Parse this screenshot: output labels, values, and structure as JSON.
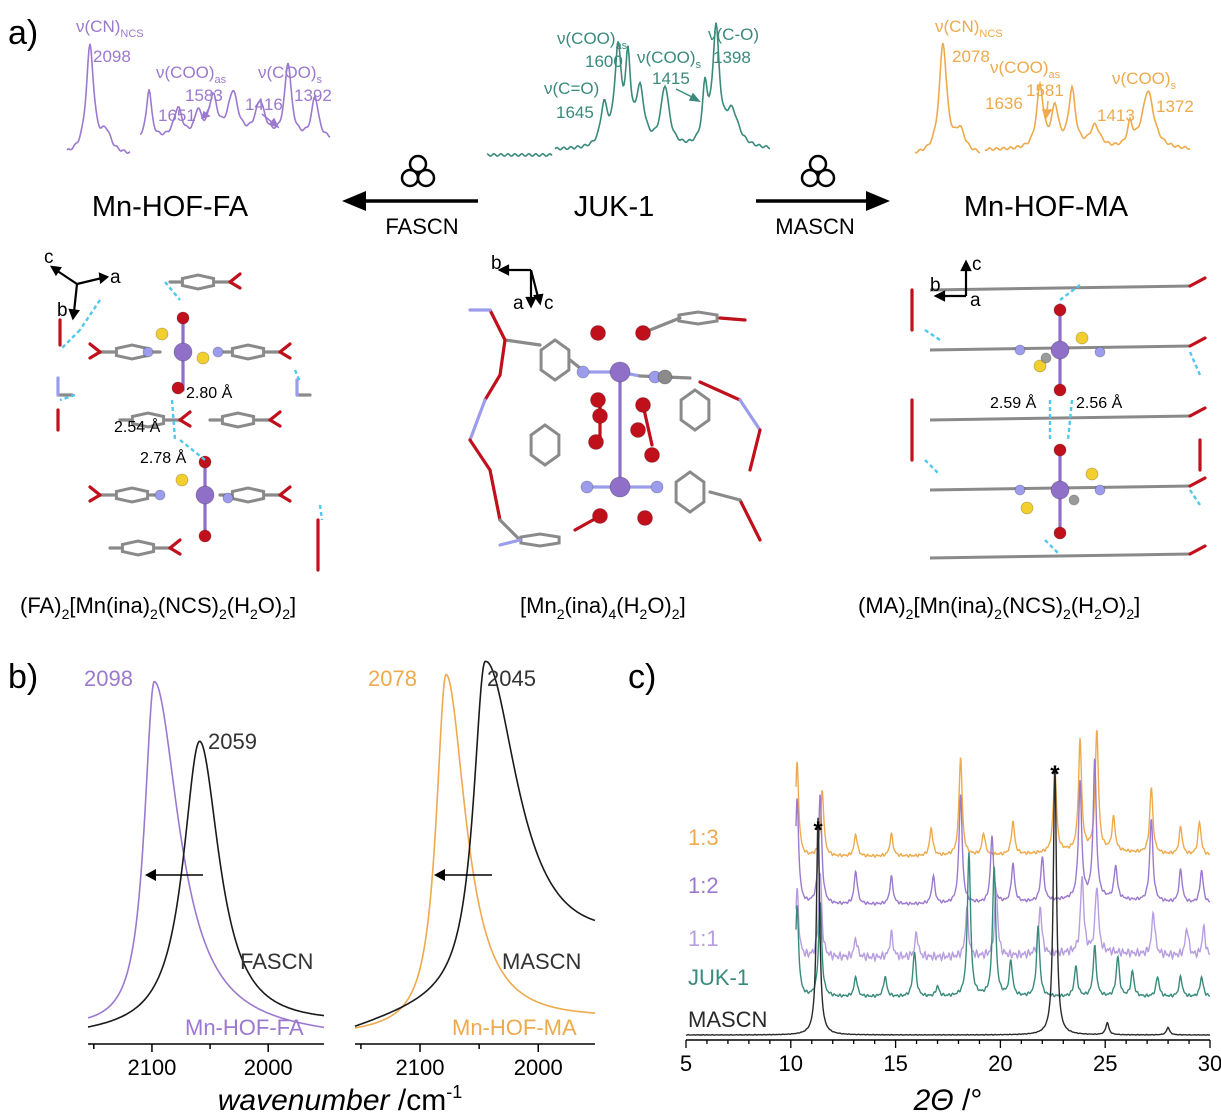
{
  "panel_labels": {
    "a": "a)",
    "b": "b)",
    "c": "c)"
  },
  "colors": {
    "fa": "#9b79cf",
    "juk": "#3a8a7c",
    "ma": "#eeaa4c",
    "black": "#1a1a1a",
    "mn": "#8f6fc8",
    "o": "#c0101c",
    "n": "#9c9cec",
    "s": "#f2cf2c",
    "c": "#9a9a9a",
    "hbond": "#4ec8ee"
  },
  "panel_a": {
    "left_compound": "Mn-HOF-FA",
    "center_compound": "JUK-1",
    "right_compound": "Mn-HOF-MA",
    "left_reagent": "FASCN",
    "right_reagent": "MASCN",
    "mill_icon": "ball-mill-icon",
    "fa_spectrum_labels": {
      "cn_base": "ν(CN)",
      "cn_sub": "NCS",
      "cn_val": "2098",
      "cooas_base": "ν(COO)",
      "cooas_sub": "as",
      "cooas_val": "1583",
      "v1651": "1651",
      "coos_base": "ν(COO)",
      "coos_sub": "s",
      "coos_val1": "1416",
      "coos_val2": "1392"
    },
    "juk_spectrum_labels": {
      "cooas_base": "ν(COO)",
      "cooas_sub": "as",
      "cooas_val": "1600",
      "co_base": "ν(C=O)",
      "co_val": "1645",
      "coos_base": "ν(COO)",
      "coos_sub": "s",
      "coos_val": "1415",
      "cO_base": "ν(C-O)",
      "cO_val": "1398"
    },
    "ma_spectrum_labels": {
      "cn_base": "ν(CN)",
      "cn_sub": "NCS",
      "cn_val": "2078",
      "cooas_base": "ν(COO)",
      "cooas_sub": "as",
      "cooas_val": "1581",
      "v1636": "1636",
      "coos_base": "ν(COO)",
      "coos_sub": "s",
      "coos_val1": "1413",
      "coos_val2": "1372"
    },
    "fa_structure": {
      "axes": [
        "c",
        "a",
        "b"
      ],
      "distances": [
        "2.80 Å",
        "2.54 Å",
        "2.78 Å"
      ]
    },
    "juk_structure": {
      "axes": [
        "b",
        "a",
        "c"
      ]
    },
    "ma_structure": {
      "axes": [
        "c",
        "b",
        "a"
      ],
      "distances": [
        "2.59 Å",
        "2.56 Å"
      ]
    },
    "formulas": {
      "fa": [
        "(FA)",
        "2",
        "[Mn(ina)",
        "2",
        "(NCS)",
        "2",
        "(H",
        "2",
        "O)",
        "2",
        "]"
      ],
      "juk": [
        "[Mn",
        "2",
        "(ina)",
        "4",
        "(H",
        "2",
        "O)",
        "2",
        "]"
      ],
      "ma": [
        "(MA)",
        "2",
        "[Mn(ina)",
        "2",
        "(NCS)",
        "2",
        "(H",
        "2",
        "O)",
        "2",
        "]"
      ]
    }
  },
  "chart_data": [
    {
      "type": "line",
      "panel": "b-left",
      "x_ticks": [
        "2100",
        "2000"
      ],
      "xlim": [
        2155,
        1952
      ],
      "series": [
        {
          "name": "Mn-HOF-FA",
          "peak_x": 2098,
          "peak_label": "2098"
        },
        {
          "name": "FASCN",
          "peak_x": 2059,
          "peak_label": "2059"
        }
      ]
    },
    {
      "type": "line",
      "panel": "b-right",
      "x_ticks": [
        "2100",
        "2000"
      ],
      "xlim": [
        2155,
        1952
      ],
      "xlabel": "wavenumber",
      "xunit": " /cm",
      "xunit_sup": "-1",
      "series": [
        {
          "name": "Mn-HOF-MA",
          "peak_x": 2078,
          "peak_label": "2078"
        },
        {
          "name": "MASCN",
          "peak_x": 2045,
          "peak_label": "2045"
        }
      ]
    },
    {
      "type": "line",
      "panel": "c",
      "x_ticks": [
        "5",
        "10",
        "15",
        "20",
        "25",
        "30"
      ],
      "xlim": [
        5,
        30
      ],
      "xlabel_theta": "2Θ",
      "xlabel_unit": " /°",
      "star_label": "*",
      "star_positions": [
        11.3,
        22.6
      ],
      "series": [
        {
          "name": "1:3",
          "color": "#eeaa4c",
          "peaks": [
            [
              8.6,
              0.55
            ],
            [
              10.3,
              0.85
            ],
            [
              11.5,
              0.6
            ],
            [
              13.1,
              0.2
            ],
            [
              14.8,
              0.2
            ],
            [
              16.7,
              0.25
            ],
            [
              18.1,
              0.9
            ],
            [
              19.2,
              0.2
            ],
            [
              20.6,
              0.3
            ],
            [
              22.6,
              0.75
            ],
            [
              23.8,
              1.0
            ],
            [
              24.6,
              1.1
            ],
            [
              25.4,
              0.3
            ],
            [
              27.2,
              0.6
            ],
            [
              28.6,
              0.25
            ],
            [
              29.5,
              0.3
            ]
          ]
        },
        {
          "name": "1:2",
          "color": "#9b79cf",
          "peaks": [
            [
              8.6,
              0.55
            ],
            [
              10.3,
              0.95
            ],
            [
              11.4,
              1.0
            ],
            [
              13.1,
              0.3
            ],
            [
              14.8,
              0.25
            ],
            [
              16.8,
              0.25
            ],
            [
              18.1,
              1.0
            ],
            [
              19.6,
              0.6
            ],
            [
              20.6,
              0.35
            ],
            [
              22.0,
              0.4
            ],
            [
              23.8,
              1.05
            ],
            [
              24.5,
              1.25
            ],
            [
              25.5,
              0.3
            ],
            [
              27.2,
              0.75
            ],
            [
              28.6,
              0.3
            ],
            [
              29.6,
              0.3
            ]
          ]
        },
        {
          "name": "1:1",
          "color": "#b79ee0",
          "peaks": [
            [
              10.3,
              0.7
            ],
            [
              11.4,
              0.9
            ],
            [
              13.1,
              0.2
            ],
            [
              14.8,
              0.25
            ],
            [
              16.0,
              0.25
            ],
            [
              18.4,
              0.5
            ],
            [
              19.8,
              0.7
            ],
            [
              21.9,
              0.5
            ],
            [
              23.9,
              0.8
            ],
            [
              24.6,
              0.7
            ],
            [
              27.3,
              0.45
            ],
            [
              28.9,
              0.3
            ],
            [
              29.7,
              0.3
            ]
          ]
        },
        {
          "name": "JUK-1",
          "color": "#3a8a7c",
          "peaks": [
            [
              10.3,
              0.9
            ],
            [
              11.4,
              0.95
            ],
            [
              13.1,
              0.2
            ],
            [
              14.5,
              0.2
            ],
            [
              15.9,
              0.45
            ],
            [
              17.0,
              0.1
            ],
            [
              18.5,
              1.45
            ],
            [
              19.7,
              1.3
            ],
            [
              20.5,
              0.35
            ],
            [
              21.8,
              0.7
            ],
            [
              23.6,
              0.3
            ],
            [
              24.5,
              0.5
            ],
            [
              25.6,
              0.4
            ],
            [
              26.3,
              0.25
            ],
            [
              27.5,
              0.2
            ],
            [
              28.6,
              0.2
            ],
            [
              29.6,
              0.2
            ]
          ]
        },
        {
          "name": "MASCN",
          "color": "#2a2a2a",
          "peaks": [
            [
              11.3,
              1.45
            ],
            [
              22.6,
              1.8
            ],
            [
              25.1,
              0.08
            ],
            [
              28.0,
              0.05
            ]
          ]
        }
      ]
    }
  ]
}
